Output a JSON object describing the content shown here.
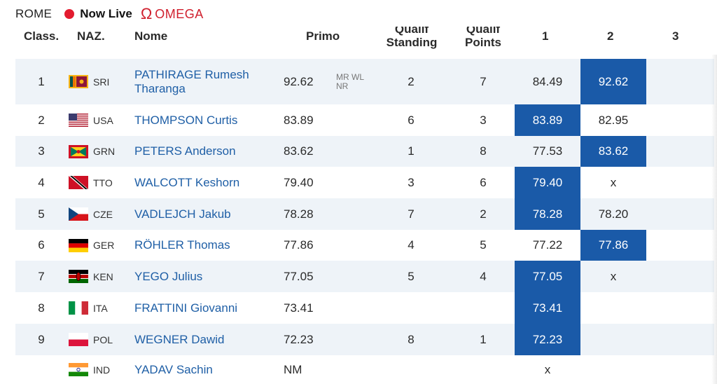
{
  "topbar": {
    "city": "ROME",
    "live": "Now Live",
    "brand": "OMEGA",
    "live_color": "#e31b2f",
    "brand_color": "#d0202e"
  },
  "table": {
    "headers": {
      "rank": "Class.",
      "nat": "NAZ.",
      "name": "Nome",
      "primo": "Primo",
      "standing": "Qualif Standing",
      "points": "Qualif Points",
      "t1": "1",
      "t2": "2",
      "t3": "3"
    },
    "highlight_color": "#1a5aa8",
    "rows": [
      {
        "rank": "1",
        "nat": "SRI",
        "flag": "sri-flag-icon",
        "name": "PATHIRAGE Rumesh Tharanga",
        "primo": "92.62",
        "note": "MR WL NR",
        "standing": "2",
        "points": "7",
        "t1": "84.49",
        "t2": "92.62",
        "best": 2
      },
      {
        "rank": "2",
        "nat": "USA",
        "flag": "usa-flag-icon",
        "name": "THOMPSON Curtis",
        "primo": "83.89",
        "note": "",
        "standing": "6",
        "points": "3",
        "t1": "83.89",
        "t2": "82.95",
        "best": 1
      },
      {
        "rank": "3",
        "nat": "GRN",
        "flag": "grn-flag-icon",
        "name": "PETERS Anderson",
        "primo": "83.62",
        "note": "",
        "standing": "1",
        "points": "8",
        "t1": "77.53",
        "t2": "83.62",
        "best": 2
      },
      {
        "rank": "4",
        "nat": "TTO",
        "flag": "tto-flag-icon",
        "name": "WALCOTT Keshorn",
        "primo": "79.40",
        "note": "",
        "standing": "3",
        "points": "6",
        "t1": "79.40",
        "t2": "x",
        "best": 1
      },
      {
        "rank": "5",
        "nat": "CZE",
        "flag": "cze-flag-icon",
        "name": "VADLEJCH Jakub",
        "primo": "78.28",
        "note": "",
        "standing": "7",
        "points": "2",
        "t1": "78.28",
        "t2": "78.20",
        "best": 1
      },
      {
        "rank": "6",
        "nat": "GER",
        "flag": "ger-flag-icon",
        "name": "RÖHLER Thomas",
        "primo": "77.86",
        "note": "",
        "standing": "4",
        "points": "5",
        "t1": "77.22",
        "t2": "77.86",
        "best": 2
      },
      {
        "rank": "7",
        "nat": "KEN",
        "flag": "ken-flag-icon",
        "name": "YEGO Julius",
        "primo": "77.05",
        "note": "",
        "standing": "5",
        "points": "4",
        "t1": "77.05",
        "t2": "x",
        "best": 1
      },
      {
        "rank": "8",
        "nat": "ITA",
        "flag": "ita-flag-icon",
        "name": "FRATTINI Giovanni",
        "primo": "73.41",
        "note": "",
        "standing": "",
        "points": "",
        "t1": "73.41",
        "t2": "",
        "best": 1
      },
      {
        "rank": "9",
        "nat": "POL",
        "flag": "pol-flag-icon",
        "name": "WEGNER Dawid",
        "primo": "72.23",
        "note": "",
        "standing": "8",
        "points": "1",
        "t1": "72.23",
        "t2": "",
        "best": 1
      },
      {
        "rank": "",
        "nat": "IND",
        "flag": "ind-flag-icon",
        "name": "YADAV Sachin",
        "primo": "NM",
        "note": "",
        "standing": "",
        "points": "",
        "t1": "x",
        "t2": "",
        "best": 0
      }
    ]
  }
}
